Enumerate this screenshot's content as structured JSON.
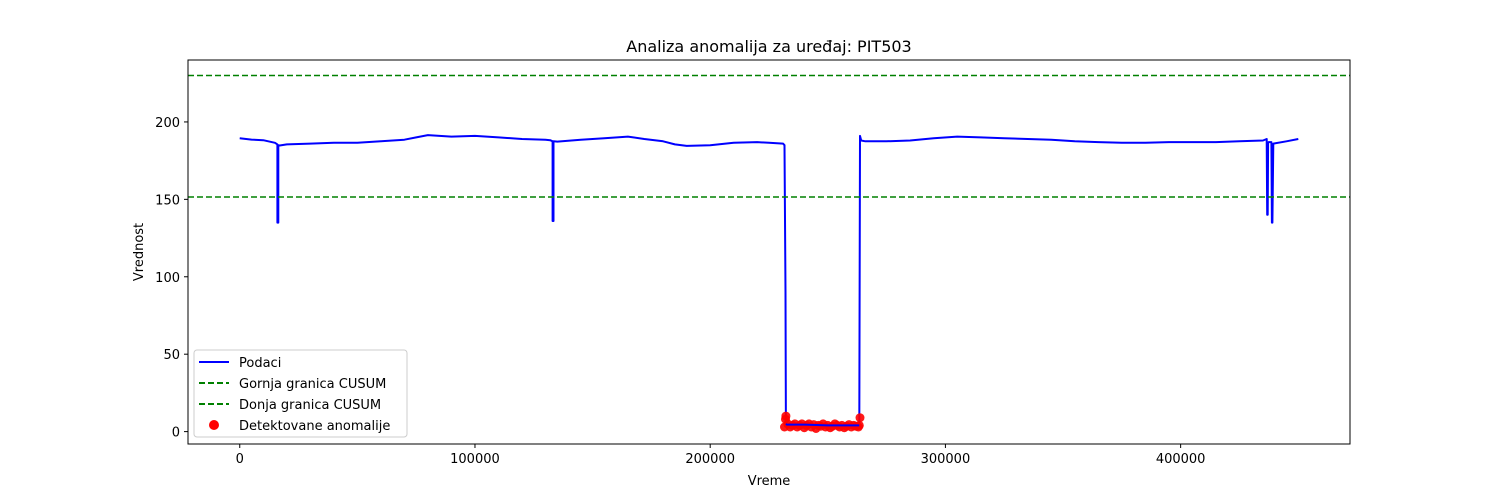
{
  "chart_data": {
    "type": "line",
    "title": "Analiza anomalija za uređaj: PIT503",
    "xlabel": "Vreme",
    "ylabel": "Vrednost",
    "xlim": [
      -22000,
      472000
    ],
    "ylim": [
      -8,
      240
    ],
    "xticks": [
      0,
      100000,
      200000,
      300000,
      400000
    ],
    "xtick_labels": [
      "0",
      "100000",
      "200000",
      "300000",
      "400000"
    ],
    "yticks": [
      0,
      50,
      100,
      150,
      200
    ],
    "ytick_labels": [
      "0",
      "50",
      "100",
      "150",
      "200"
    ],
    "grid": false,
    "legend_position": "lower-left",
    "series": [
      {
        "name": "Podaci",
        "kind": "line",
        "color": "#0000ff",
        "x": [
          0,
          5000,
          10000,
          15000,
          16000,
          16000,
          16400,
          16400,
          17000,
          20000,
          30000,
          40000,
          50000,
          60000,
          70000,
          75000,
          80000,
          90000,
          100000,
          110000,
          120000,
          130000,
          132000,
          133000,
          133000,
          133400,
          133400,
          135000,
          145000,
          155000,
          165000,
          172000,
          180000,
          185000,
          190000,
          200000,
          210000,
          220000,
          225000,
          231000,
          231600,
          232000,
          232200,
          232600,
          240000,
          250000,
          263400,
          263700,
          264200,
          266000,
          275000,
          285000,
          295000,
          305000,
          315000,
          325000,
          335000,
          345000,
          355000,
          365000,
          375000,
          385000,
          395000,
          405000,
          415000,
          425000,
          435000,
          436600,
          436800,
          437000,
          437200,
          437400,
          438600,
          438800,
          439000,
          439400,
          445000,
          450000
        ],
        "y": [
          189.5,
          188.6,
          188.2,
          186.5,
          185.5,
          135,
          135,
          185,
          184.8,
          185.5,
          186,
          186.5,
          186.5,
          187.5,
          188.5,
          190,
          191.5,
          190.5,
          191,
          190,
          189,
          188.5,
          188.2,
          187.5,
          136,
          136,
          187.5,
          187.3,
          188.5,
          189.5,
          190.5,
          189,
          187.5,
          185.5,
          184.5,
          185,
          186.5,
          187,
          186.5,
          186,
          185,
          90,
          5,
          4.5,
          4.5,
          4,
          4,
          191,
          188,
          187.5,
          187.5,
          188,
          189.5,
          190.5,
          190,
          189.5,
          189,
          188.5,
          187.5,
          187,
          186.5,
          186.5,
          187,
          187,
          187,
          187.5,
          188,
          189,
          140,
          140,
          186.5,
          187,
          187,
          135,
          135,
          186,
          187.5,
          189
        ]
      },
      {
        "name": "Gornja granica CUSUM",
        "kind": "hline",
        "color": "#008000",
        "y": 230
      },
      {
        "name": "Donja granica CUSUM",
        "kind": "hline",
        "color": "#008000",
        "y": 151.5
      },
      {
        "name": "Detektovane anomalije",
        "kind": "scatter",
        "color": "#ff0000",
        "x": [
          231600,
          232000,
          232200,
          233000,
          234000,
          235000,
          236000,
          237000,
          238000,
          239000,
          240000,
          241000,
          242000,
          243000,
          244000,
          245000,
          246000,
          247000,
          248000,
          249000,
          250000,
          251000,
          252000,
          253000,
          254000,
          255000,
          256000,
          257000,
          258000,
          259000,
          260000,
          261000,
          262000,
          263000,
          263400,
          263700
        ],
        "y": [
          3,
          8,
          10,
          5,
          3,
          4,
          5,
          3,
          4,
          5,
          2.5,
          4,
          5,
          3,
          4.5,
          2,
          4,
          3.5,
          5,
          3,
          4,
          2.5,
          3.5,
          5,
          4,
          3,
          4,
          2.5,
          3.5,
          4.5,
          3,
          4,
          3.5,
          3,
          4,
          9
        ]
      }
    ]
  }
}
